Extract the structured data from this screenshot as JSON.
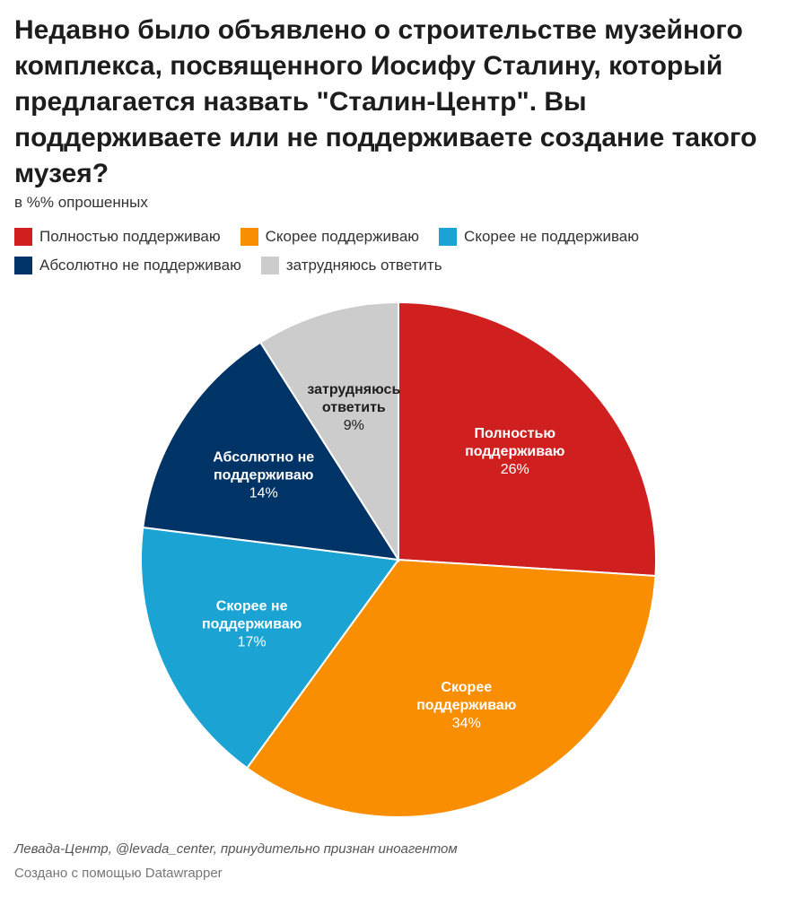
{
  "chart_data": {
    "type": "pie",
    "title": "Недавно было объявлено о строительстве музейного комплекса, посвященного Иосифу Сталину, который предлагается назвать \"Сталин-Центр\". Вы поддерживаете или не поддерживаете создание такого музея?",
    "subtitle": "в %% опрошенных",
    "unit": "%",
    "start_angle_deg": 0,
    "direction": "clockwise",
    "legend_position": "top",
    "slices": [
      {
        "label": "Полностью поддерживаю",
        "label_lines": [
          "Полностью",
          "поддерживаю"
        ],
        "value": 26,
        "value_label": "26%",
        "color": "#cf1f1f",
        "text_color": "#ffffff"
      },
      {
        "label": "Скорее поддерживаю",
        "label_lines": [
          "Скорее",
          "поддерживаю"
        ],
        "value": 34,
        "value_label": "34%",
        "color": "#f98e00",
        "text_color": "#ffffff"
      },
      {
        "label": "Скорее не поддерживаю",
        "label_lines": [
          "Скорее не",
          "поддерживаю"
        ],
        "value": 17,
        "value_label": "17%",
        "color": "#1aa3d3",
        "text_color": "#ffffff"
      },
      {
        "label": "Абсолютно не поддерживаю",
        "label_lines": [
          "Абсолютно не",
          "поддерживаю"
        ],
        "value": 14,
        "value_label": "14%",
        "color": "#003466",
        "text_color": "#ffffff"
      },
      {
        "label": "затрудняюсь ответить",
        "label_lines": [
          "затрудняюсь",
          "ответить"
        ],
        "value": 9,
        "value_label": "9%",
        "color": "#cccccc",
        "text_color": "#1d1d1d"
      }
    ]
  },
  "footer": {
    "source": "Левада-Центр, @levada_center, принудительно признан иноагентом",
    "credit": "Создано с помощью Datawrapper"
  }
}
